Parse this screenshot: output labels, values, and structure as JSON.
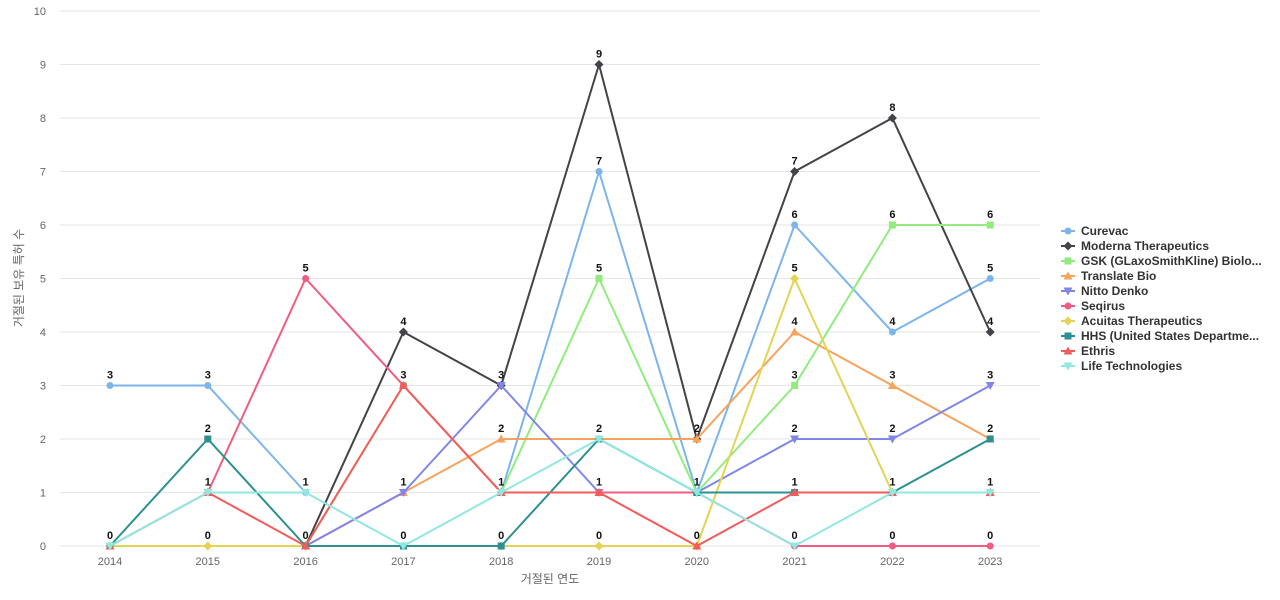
{
  "chart_data": {
    "type": "line",
    "xlabel": "거절된 연도",
    "ylabel": "거절된 보유 특허 수",
    "ylim": [
      0,
      10
    ],
    "yticks": [
      0,
      1,
      2,
      3,
      4,
      5,
      6,
      7,
      8,
      9,
      10
    ],
    "x": [
      "2014",
      "2015",
      "2016",
      "2017",
      "2018",
      "2019",
      "2020",
      "2021",
      "2022",
      "2023"
    ],
    "legend_position": "right",
    "grid": true,
    "series": [
      {
        "name": "Curevac",
        "color": "#7cb5ec",
        "marker": "circle",
        "values": [
          3,
          3,
          1,
          null,
          1,
          7,
          1,
          6,
          4,
          5
        ]
      },
      {
        "name": "Moderna Therapeutics",
        "color": "#434348",
        "marker": "diamond",
        "values": [
          null,
          null,
          0,
          4,
          3,
          9,
          2,
          7,
          8,
          4
        ]
      },
      {
        "name": "GSK (GLaxoSmithKline) Biolo...",
        "color": "#90ed7d",
        "marker": "square",
        "values": [
          null,
          null,
          0,
          3,
          1,
          5,
          1,
          3,
          6,
          6
        ]
      },
      {
        "name": "Translate Bio",
        "color": "#f7a35c",
        "marker": "triangle",
        "values": [
          null,
          null,
          0,
          1,
          2,
          2,
          2,
          4,
          3,
          2
        ]
      },
      {
        "name": "Nitto Denko",
        "color": "#8085e9",
        "marker": "triangle-down",
        "values": [
          null,
          null,
          0,
          1,
          3,
          1,
          1,
          2,
          2,
          3
        ]
      },
      {
        "name": "Seqirus",
        "color": "#f15c80",
        "marker": "circle",
        "values": [
          null,
          1,
          5,
          3,
          1,
          1,
          1,
          0,
          0,
          0
        ]
      },
      {
        "name": "Acuitas Therapeutics",
        "color": "#e4d354",
        "marker": "diamond",
        "values": [
          0,
          0,
          0,
          0,
          0,
          0,
          0,
          5,
          1,
          1
        ]
      },
      {
        "name": "HHS (United States Departme...",
        "color": "#2b908f",
        "marker": "square",
        "values": [
          0,
          2,
          0,
          0,
          0,
          2,
          1,
          1,
          1,
          2
        ]
      },
      {
        "name": "Ethris",
        "color": "#f45b5b",
        "marker": "triangle",
        "values": [
          0,
          1,
          0,
          3,
          1,
          1,
          0,
          1,
          1,
          1
        ]
      },
      {
        "name": "Life Technologies",
        "color": "#91e8e1",
        "marker": "triangle-down",
        "values": [
          0,
          1,
          1,
          0,
          1,
          2,
          1,
          0,
          1,
          1
        ]
      }
    ],
    "data_labels": [
      {
        "x": "2014",
        "value": 3
      },
      {
        "x": "2014",
        "value": 0
      },
      {
        "x": "2015",
        "value": 3
      },
      {
        "x": "2015",
        "value": 2
      },
      {
        "x": "2015",
        "value": 1
      },
      {
        "x": "2015",
        "value": 0
      },
      {
        "x": "2016",
        "value": 5
      },
      {
        "x": "2016",
        "value": 1
      },
      {
        "x": "2016",
        "value": 0
      },
      {
        "x": "2017",
        "value": 4
      },
      {
        "x": "2017",
        "value": 3
      },
      {
        "x": "2017",
        "value": 1
      },
      {
        "x": "2017",
        "value": 0
      },
      {
        "x": "2018",
        "value": 3
      },
      {
        "x": "2018",
        "value": 2
      },
      {
        "x": "2018",
        "value": 1
      },
      {
        "x": "2018",
        "value": 0
      },
      {
        "x": "2019",
        "value": 9
      },
      {
        "x": "2019",
        "value": 7
      },
      {
        "x": "2019",
        "value": 5
      },
      {
        "x": "2019",
        "value": 2
      },
      {
        "x": "2019",
        "value": 1
      },
      {
        "x": "2019",
        "value": 0
      },
      {
        "x": "2020",
        "value": 2
      },
      {
        "x": "2020",
        "value": 1
      },
      {
        "x": "2020",
        "value": 0
      },
      {
        "x": "2021",
        "value": 7
      },
      {
        "x": "2021",
        "value": 6
      },
      {
        "x": "2021",
        "value": 5
      },
      {
        "x": "2021",
        "value": 4
      },
      {
        "x": "2021",
        "value": 3
      },
      {
        "x": "2021",
        "value": 2
      },
      {
        "x": "2021",
        "value": 1
      },
      {
        "x": "2021",
        "value": 0
      },
      {
        "x": "2022",
        "value": 8
      },
      {
        "x": "2022",
        "value": 6
      },
      {
        "x": "2022",
        "value": 4
      },
      {
        "x": "2022",
        "value": 3
      },
      {
        "x": "2022",
        "value": 2
      },
      {
        "x": "2022",
        "value": 1
      },
      {
        "x": "2022",
        "value": 0
      },
      {
        "x": "2023",
        "value": 6
      },
      {
        "x": "2023",
        "value": 5
      },
      {
        "x": "2023",
        "value": 4
      },
      {
        "x": "2023",
        "value": 3
      },
      {
        "x": "2023",
        "value": 2
      },
      {
        "x": "2023",
        "value": 1
      },
      {
        "x": "2023",
        "value": 0
      }
    ]
  }
}
